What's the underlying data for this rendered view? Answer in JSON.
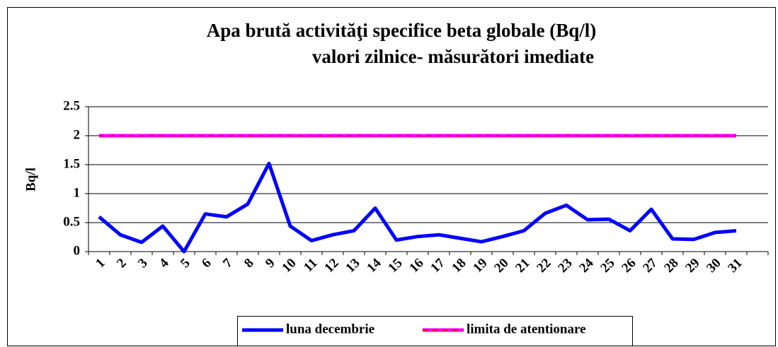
{
  "chart_data": {
    "type": "line",
    "title": [
      "Apa brută activităţi specifice beta globale (Bq/l)",
      "valori zilnice- măsurători imediate"
    ],
    "ylabel": "Bq/l",
    "categories": [
      "1",
      "2",
      "3",
      "4",
      "5",
      "6",
      "7",
      "8",
      "9",
      "10",
      "11",
      "12",
      "13",
      "14",
      "15",
      "16",
      "17",
      "18",
      "19",
      "20",
      "21",
      "22",
      "23",
      "24",
      "25",
      "26",
      "27",
      "28",
      "29",
      "30",
      "31",
      null
    ],
    "series": [
      {
        "name": "luna decembrie",
        "color": "#0000ff",
        "values": [
          0.6,
          0.29,
          0.16,
          0.44,
          0.0,
          0.65,
          0.6,
          0.82,
          1.52,
          0.44,
          0.19,
          0.29,
          0.36,
          0.75,
          0.2,
          0.26,
          0.29,
          0.23,
          0.17,
          0.26,
          0.36,
          0.66,
          0.8,
          0.55,
          0.56,
          0.36,
          0.73,
          0.22,
          0.21,
          0.33,
          0.36,
          null
        ]
      },
      {
        "name": "limita de atentionare",
        "color": "#ff00ff",
        "dash_color": "#ff0000",
        "values": [
          2,
          2,
          2,
          2,
          2,
          2,
          2,
          2,
          2,
          2,
          2,
          2,
          2,
          2,
          2,
          2,
          2,
          2,
          2,
          2,
          2,
          2,
          2,
          2,
          2,
          2,
          2,
          2,
          2,
          2,
          2,
          null
        ]
      }
    ],
    "ylim": [
      0,
      2.5
    ],
    "yticks": [
      0,
      0.5,
      1,
      1.5,
      2,
      2.5
    ],
    "grid": true,
    "legend": "bottom"
  }
}
